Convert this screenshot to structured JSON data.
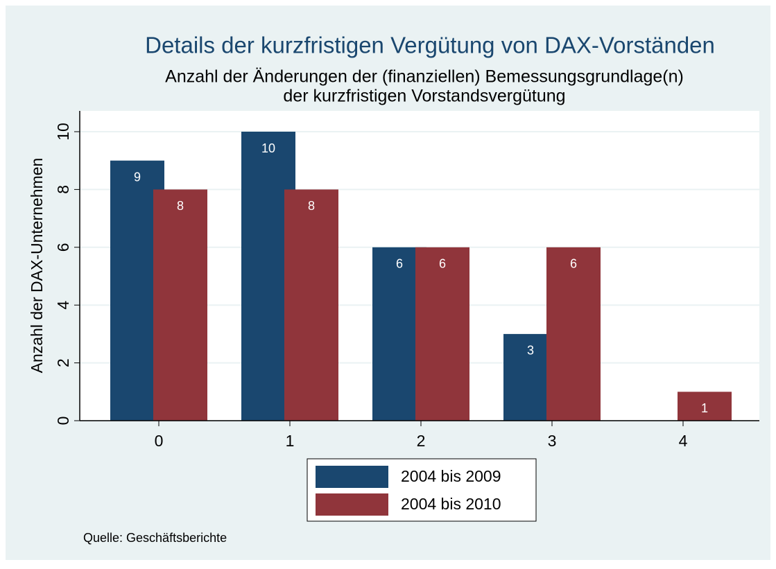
{
  "chart_data": {
    "type": "bar",
    "title": "Details der kurzfristigen Vergütung von DAX-Vorständen",
    "subtitle": [
      "Anzahl der Änderungen der (finanziellen) Bemessungsgrundlage(n)",
      "der kurzfristigen Vorstandsvergütung"
    ],
    "y_label": "Anzahl der DAX-Unternehmen",
    "note": "Quelle: Geschäftsberichte",
    "categories": [
      "0",
      "1",
      "2",
      "3",
      "4"
    ],
    "series": [
      {
        "name": "2004 bis 2009",
        "color": "#1a476f",
        "values": [
          9,
          10,
          6,
          3,
          null
        ]
      },
      {
        "name": "2004 bis 2010",
        "color": "#90353b",
        "values": [
          8,
          8,
          6,
          6,
          1
        ]
      }
    ],
    "ylim": [
      0,
      10
    ],
    "yticks": [
      0,
      2,
      4,
      6,
      8,
      10
    ],
    "grid": true,
    "legend": "bottom"
  }
}
